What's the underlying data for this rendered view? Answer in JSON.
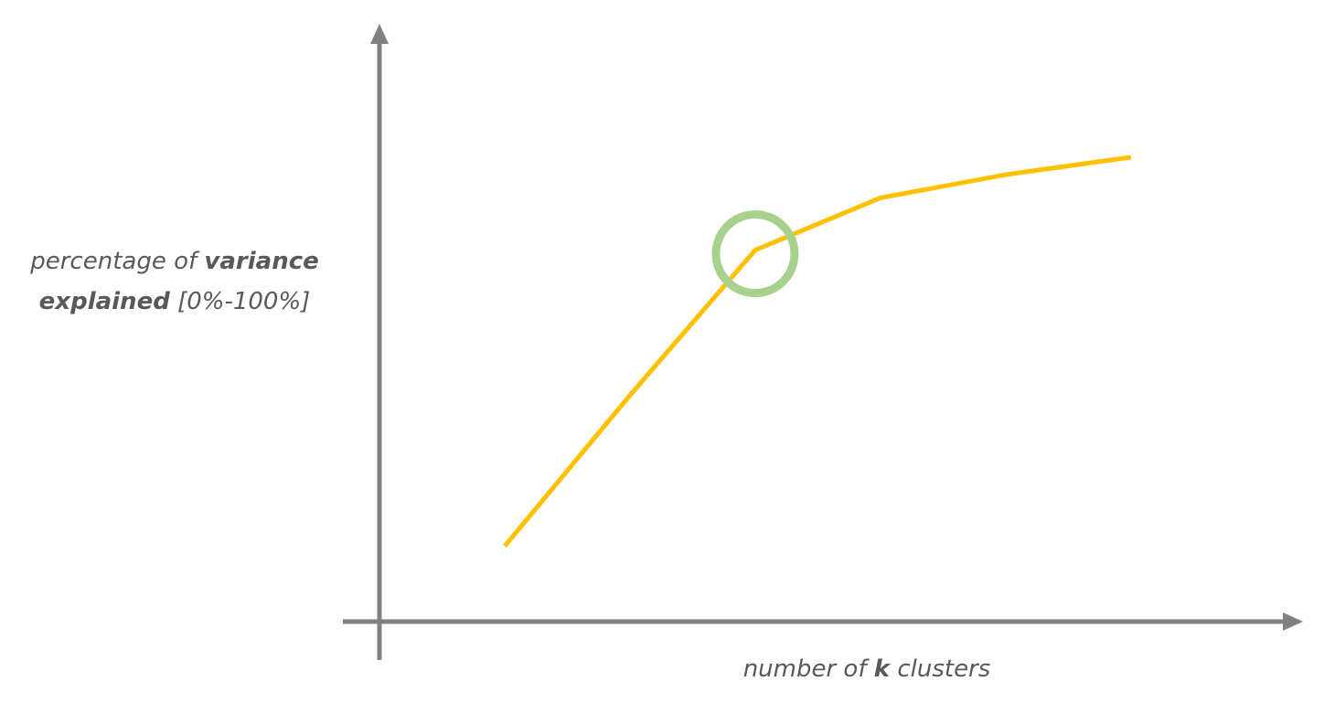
{
  "chart_data": {
    "type": "line",
    "title": "",
    "xlabel": {
      "before": "number of ",
      "bold": "k",
      "after": " clusters"
    },
    "ylabel": {
      "line1_before": "percentage of ",
      "line1_bold": "variance",
      "line2_bold": "explained",
      "line2_after": " [0%-100%]"
    },
    "x": [
      1,
      2,
      3,
      4,
      5,
      6
    ],
    "xlim": [
      0,
      7.3
    ],
    "ylim": [
      0,
      100
    ],
    "grid": false,
    "series": [
      {
        "values": [
          13,
          39,
          64,
          73,
          77,
          80
        ],
        "color": "#FFC000"
      }
    ],
    "highlight": {
      "x": 3,
      "y": 64,
      "color": "#A9D18E"
    },
    "axis_color": "#808080"
  }
}
